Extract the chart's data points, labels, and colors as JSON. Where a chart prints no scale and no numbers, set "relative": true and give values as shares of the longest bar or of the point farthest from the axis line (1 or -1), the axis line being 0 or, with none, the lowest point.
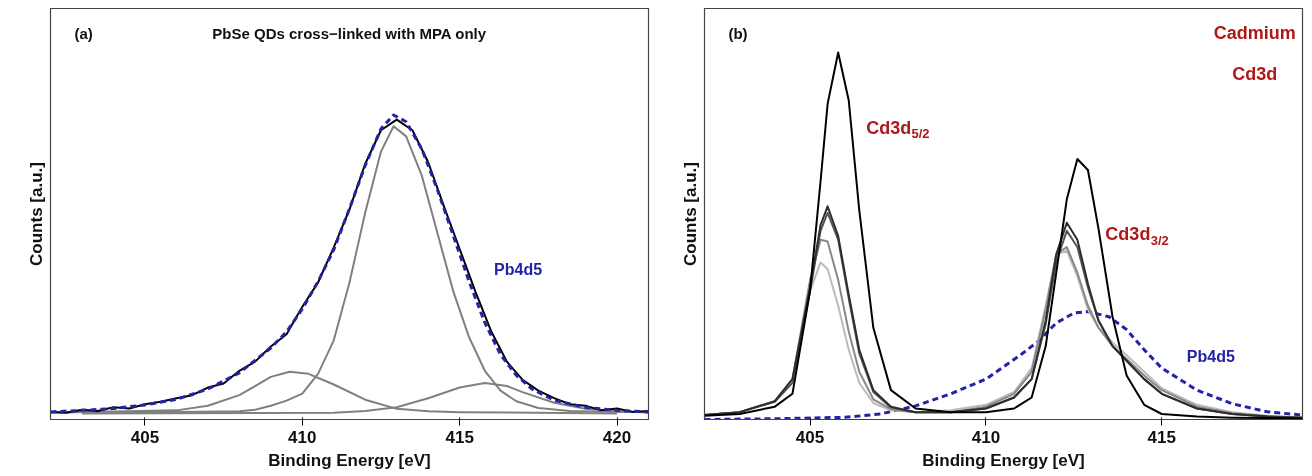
{
  "chart_data": [
    {
      "type": "line",
      "title": "PbSe QDs cross−linked with MPA only",
      "xlabel": "Binding Energy [eV]",
      "ylabel": "Counts [a.u.]",
      "relative": true,
      "xlim": [
        402,
        421
      ],
      "xticks": [
        405,
        410,
        415,
        420
      ],
      "grid": false,
      "annotations": [
        "(a)"
      ],
      "series": [
        {
          "color": "#808080",
          "x": [
            402,
            404,
            406,
            407,
            408,
            408.5,
            409,
            409.6,
            410.2,
            411,
            412,
            413,
            414,
            415,
            420
          ],
          "values": [
            0.022,
            0.026,
            0.03,
            0.045,
            0.08,
            0.11,
            0.14,
            0.157,
            0.15,
            0.115,
            0.065,
            0.035,
            0.027,
            0.024,
            0.02
          ]
        },
        {
          "color": "#808080",
          "x": [
            403,
            411,
            412,
            413,
            414,
            415,
            415.8,
            416.5,
            417,
            418,
            419,
            420,
            421
          ],
          "values": [
            0.02,
            0.022,
            0.028,
            0.04,
            0.07,
            0.105,
            0.12,
            0.11,
            0.09,
            0.055,
            0.035,
            0.027,
            0.023
          ]
        },
        {
          "color": "#808080",
          "x": [
            402,
            406,
            408,
            408.5,
            409,
            409.5,
            410,
            410.5,
            411,
            411.5,
            412,
            412.5,
            412.9,
            413.3,
            413.8,
            414.3,
            414.8,
            415.3,
            415.8,
            416.3,
            416.8,
            417.5,
            418.5,
            420,
            421
          ],
          "values": [
            0.025,
            0.025,
            0.027,
            0.032,
            0.045,
            0.062,
            0.085,
            0.15,
            0.26,
            0.45,
            0.68,
            0.88,
            0.963,
            0.93,
            0.8,
            0.61,
            0.42,
            0.27,
            0.16,
            0.095,
            0.06,
            0.038,
            0.028,
            0.025,
            0.025
          ]
        },
        {
          "color": "#000000",
          "x": [
            402,
            402.5,
            403,
            403.5,
            404,
            404.5,
            405,
            405.5,
            406,
            406.5,
            407,
            407.5,
            408,
            408.5,
            409,
            409.5,
            410,
            410.5,
            411,
            411.5,
            412,
            412.5,
            413,
            413.5,
            414,
            414.5,
            415,
            415.5,
            416,
            416.5,
            417,
            417.5,
            418,
            418.5,
            419,
            419.5,
            420,
            420.5,
            421
          ],
          "values": [
            0.025,
            0.022,
            0.032,
            0.028,
            0.04,
            0.036,
            0.05,
            0.058,
            0.07,
            0.08,
            0.105,
            0.118,
            0.16,
            0.19,
            0.24,
            0.28,
            0.37,
            0.45,
            0.565,
            0.69,
            0.84,
            0.95,
            0.985,
            0.95,
            0.845,
            0.7,
            0.56,
            0.42,
            0.29,
            0.19,
            0.13,
            0.095,
            0.07,
            0.05,
            0.045,
            0.03,
            0.036,
            0.025,
            0.028
          ]
        },
        {
          "name": "Pb4d5",
          "color": "#2323a8",
          "line_style": "dashed",
          "x": [
            402,
            403,
            404,
            405,
            406,
            407,
            408,
            409,
            409.5,
            410,
            410.5,
            411,
            411.5,
            412,
            412.5,
            412.9,
            413.3,
            413.8,
            414.3,
            414.8,
            415.3,
            415.8,
            416.3,
            416.8,
            417.3,
            418,
            419,
            420,
            421
          ],
          "values": [
            0.025,
            0.03,
            0.036,
            0.048,
            0.066,
            0.1,
            0.153,
            0.235,
            0.288,
            0.363,
            0.453,
            0.558,
            0.693,
            0.835,
            0.955,
            1.0,
            0.978,
            0.888,
            0.753,
            0.603,
            0.453,
            0.318,
            0.213,
            0.145,
            0.1,
            0.063,
            0.04,
            0.03,
            0.025
          ]
        }
      ]
    },
    {
      "type": "line",
      "xlabel": "Binding Energy [eV]",
      "ylabel": "Counts [a.u.]",
      "relative": true,
      "xlim": [
        402,
        419
      ],
      "xticks": [
        405,
        410,
        415
      ],
      "grid": false,
      "annotations": [
        "(b)",
        "Cadmium",
        "Cd3d",
        "Cd3d$_{5/2}$",
        "Cd3d$_{3/2}$"
      ],
      "series": [
        {
          "name": "Pb4d5",
          "color": "#2323a8",
          "line_style": "dashed",
          "x": [
            402,
            404,
            406,
            407,
            408,
            409,
            410,
            411,
            411.5,
            412,
            412.5,
            412.9,
            413.5,
            414,
            414.5,
            415,
            415.5,
            416,
            417,
            418,
            419
          ],
          "values": [
            0,
            0.002,
            0.006,
            0.015,
            0.037,
            0.07,
            0.11,
            0.177,
            0.214,
            0.263,
            0.29,
            0.294,
            0.28,
            0.245,
            0.19,
            0.14,
            0.11,
            0.08,
            0.043,
            0.021,
            0.012
          ]
        },
        {
          "color": "#bbbbbb",
          "x": [
            402,
            403,
            404,
            404.5,
            405,
            405.3,
            405.5,
            405.8,
            406.1,
            406.4,
            406.8,
            407.3,
            408,
            409,
            410,
            410.8,
            411.3,
            411.7,
            412,
            412.3,
            412.6,
            412.9,
            413.2,
            413.6,
            414,
            414.5,
            415,
            416,
            417,
            418,
            419
          ],
          "values": [
            0.012,
            0.02,
            0.05,
            0.11,
            0.35,
            0.428,
            0.41,
            0.31,
            0.19,
            0.1,
            0.045,
            0.025,
            0.02,
            0.025,
            0.04,
            0.075,
            0.14,
            0.31,
            0.45,
            0.46,
            0.39,
            0.3,
            0.25,
            0.21,
            0.175,
            0.13,
            0.085,
            0.04,
            0.02,
            0.01,
            0.006
          ]
        },
        {
          "color": "#888888",
          "x": [
            402,
            403,
            404,
            404.5,
            405,
            405.3,
            405.5,
            405.8,
            406.1,
            406.4,
            406.8,
            407.3,
            408,
            409,
            410,
            410.8,
            411.3,
            411.7,
            412,
            412.3,
            412.6,
            412.9,
            413.2,
            413.6,
            414,
            414.5,
            415,
            416,
            417,
            418,
            419
          ],
          "values": [
            0.012,
            0.02,
            0.05,
            0.11,
            0.38,
            0.49,
            0.485,
            0.38,
            0.24,
            0.13,
            0.055,
            0.028,
            0.02,
            0.02,
            0.035,
            0.07,
            0.13,
            0.3,
            0.45,
            0.47,
            0.4,
            0.31,
            0.25,
            0.2,
            0.165,
            0.12,
            0.08,
            0.035,
            0.017,
            0.009,
            0.005
          ]
        },
        {
          "color": "#555555",
          "x": [
            402,
            403,
            404,
            404.5,
            405,
            405.3,
            405.5,
            405.8,
            406.1,
            406.4,
            406.8,
            407.3,
            408,
            409,
            410,
            410.8,
            411.3,
            411.7,
            412,
            412.3,
            412.6,
            412.9,
            413.2,
            413.6,
            414,
            414.5,
            415,
            416,
            417,
            418,
            419
          ],
          "values": [
            0.012,
            0.02,
            0.048,
            0.1,
            0.35,
            0.515,
            0.563,
            0.49,
            0.33,
            0.18,
            0.075,
            0.033,
            0.02,
            0.02,
            0.03,
            0.06,
            0.11,
            0.26,
            0.43,
            0.514,
            0.47,
            0.36,
            0.27,
            0.2,
            0.16,
            0.11,
            0.07,
            0.03,
            0.015,
            0.008,
            0.005
          ]
        },
        {
          "color": "#2e2e2e",
          "x": [
            402,
            403,
            404,
            404.5,
            405,
            405.3,
            405.5,
            405.8,
            406.1,
            406.4,
            406.8,
            407.3,
            408,
            409,
            410,
            410.8,
            411.3,
            411.7,
            412,
            412.3,
            412.6,
            412.9,
            413.2,
            413.6,
            414,
            414.5,
            415,
            416,
            417,
            418,
            419
          ],
          "values": [
            0.012,
            0.02,
            0.05,
            0.11,
            0.36,
            0.53,
            0.581,
            0.5,
            0.34,
            0.19,
            0.08,
            0.035,
            0.02,
            0.02,
            0.03,
            0.06,
            0.11,
            0.27,
            0.45,
            0.536,
            0.49,
            0.37,
            0.27,
            0.2,
            0.16,
            0.11,
            0.07,
            0.03,
            0.015,
            0.008,
            0.005
          ]
        },
        {
          "color": "#000000",
          "x": [
            402,
            403,
            404,
            404.5,
            405,
            405.3,
            405.5,
            405.8,
            406.1,
            406.4,
            406.8,
            407.3,
            408,
            409,
            410,
            410.8,
            411.3,
            411.7,
            412,
            412.3,
            412.6,
            412.9,
            413.2,
            413.6,
            414,
            414.5,
            415,
            416,
            417,
            418,
            419
          ],
          "values": [
            0.01,
            0.015,
            0.035,
            0.07,
            0.35,
            0.65,
            0.86,
            1.0,
            0.87,
            0.57,
            0.25,
            0.08,
            0.03,
            0.02,
            0.02,
            0.03,
            0.06,
            0.2,
            0.4,
            0.6,
            0.71,
            0.68,
            0.52,
            0.28,
            0.12,
            0.04,
            0.015,
            0.008,
            0.005,
            0.004,
            0.003
          ]
        }
      ]
    }
  ]
}
